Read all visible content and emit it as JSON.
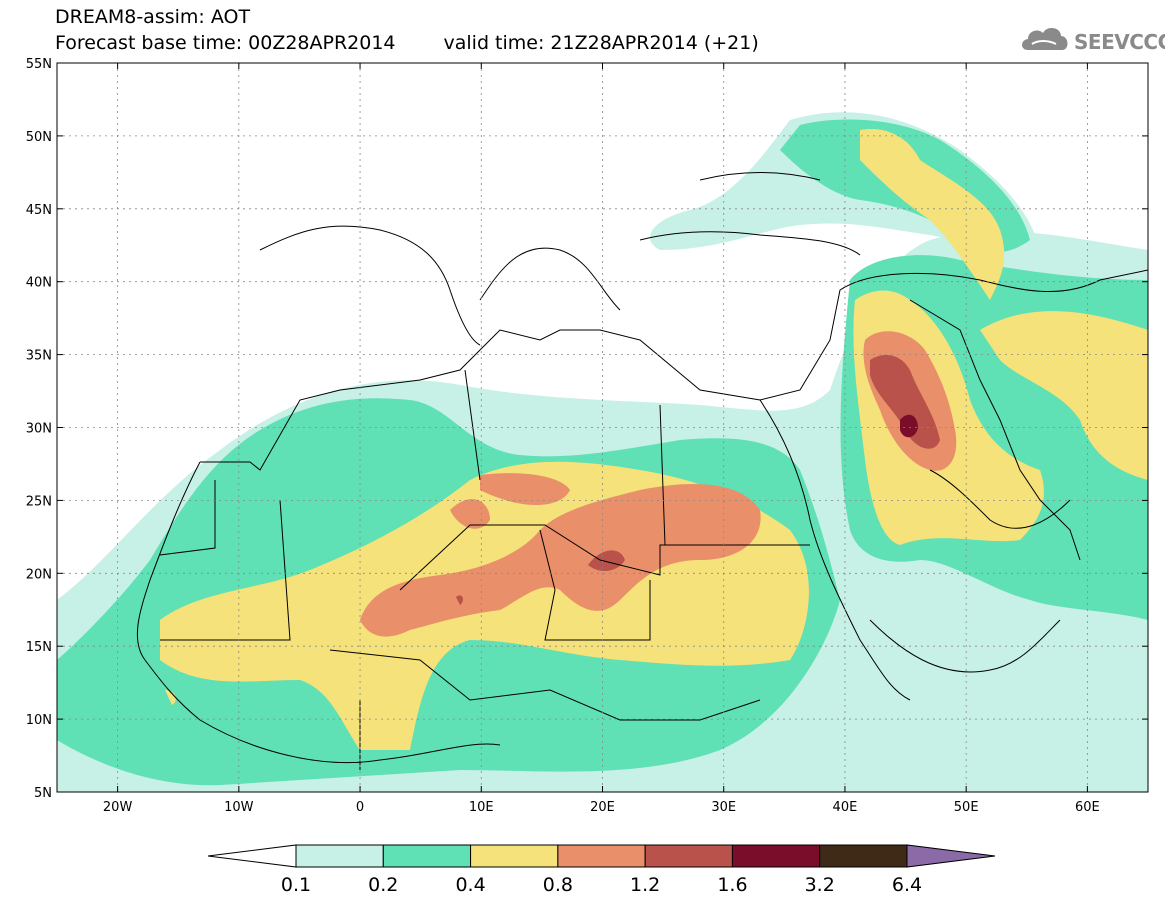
{
  "title": {
    "line1": "DREAM8-assim: AOT",
    "base_time": "Forecast base time: 00Z28APR2014",
    "valid_time": "valid time: 21Z28APR2014 (+21)"
  },
  "logo": {
    "text": "SEEVCCC",
    "icon": "cloud-icon"
  },
  "map": {
    "lon_range": [
      -25,
      65
    ],
    "lat_range": [
      5,
      55
    ],
    "lat_ticks": [
      {
        "value": 55,
        "label": "55N"
      },
      {
        "value": 50,
        "label": "50N"
      },
      {
        "value": 45,
        "label": "45N"
      },
      {
        "value": 40,
        "label": "40N"
      },
      {
        "value": 35,
        "label": "35N"
      },
      {
        "value": 30,
        "label": "30N"
      },
      {
        "value": 25,
        "label": "25N"
      },
      {
        "value": 20,
        "label": "20N"
      },
      {
        "value": 15,
        "label": "15N"
      },
      {
        "value": 10,
        "label": "10N"
      },
      {
        "value": 5,
        "label": "5N"
      }
    ],
    "lon_ticks": [
      {
        "value": -20,
        "label": "20W"
      },
      {
        "value": -10,
        "label": "10W"
      },
      {
        "value": 0,
        "label": "0"
      },
      {
        "value": 10,
        "label": "10E"
      },
      {
        "value": 20,
        "label": "20E"
      },
      {
        "value": 30,
        "label": "30E"
      },
      {
        "value": 40,
        "label": "40E"
      },
      {
        "value": 50,
        "label": "50E"
      },
      {
        "value": 60,
        "label": "60E"
      }
    ],
    "grid": true
  },
  "colorbar": {
    "labels": [
      "0.1",
      "0.2",
      "0.4",
      "0.8",
      "1.2",
      "1.6",
      "3.2",
      "6.4"
    ],
    "colors": [
      "#ffffff",
      "#c7f0e6",
      "#5fe0b5",
      "#f5e27a",
      "#e9906a",
      "#b8524a",
      "#7a0d2a",
      "#3e2a17",
      "#8c6aa8"
    ]
  }
}
